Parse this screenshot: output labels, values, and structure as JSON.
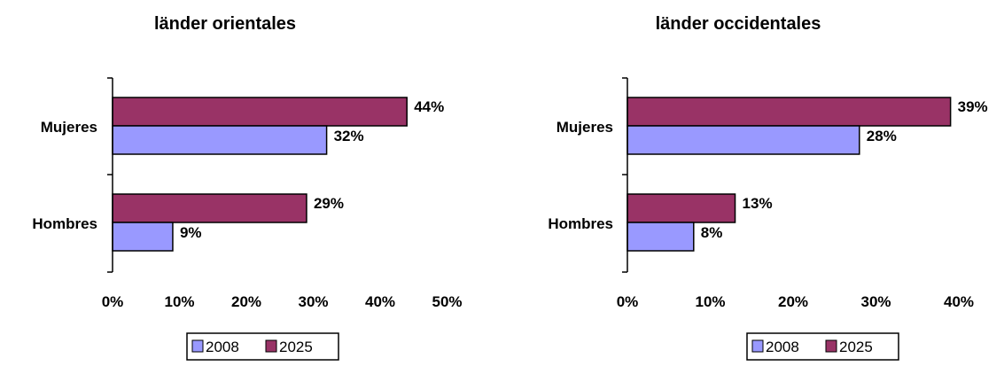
{
  "chart_data": [
    {
      "type": "bar",
      "orientation": "horizontal",
      "title": "länder orientales",
      "categories": [
        "Mujeres",
        "Hombres"
      ],
      "series": [
        {
          "name": "2008",
          "values": [
            32,
            9
          ],
          "labels": [
            "32%",
            "9%"
          ]
        },
        {
          "name": "2025",
          "values": [
            44,
            29
          ],
          "labels": [
            "44%",
            "29%"
          ]
        }
      ],
      "xlim": [
        0,
        50
      ],
      "x_ticks": [
        "0%",
        "10%",
        "20%",
        "30%",
        "40%",
        "50%"
      ],
      "legend": "bottom",
      "grid": false
    },
    {
      "type": "bar",
      "orientation": "horizontal",
      "title": "länder occidentales",
      "categories": [
        "Mujeres",
        "Hombres"
      ],
      "series": [
        {
          "name": "2008",
          "values": [
            28,
            8
          ],
          "labels": [
            "28%",
            "8%"
          ]
        },
        {
          "name": "2025",
          "values": [
            39,
            13
          ],
          "labels": [
            "39%",
            "13%"
          ]
        }
      ],
      "xlim": [
        0,
        40
      ],
      "x_ticks": [
        "0%",
        "10%",
        "20%",
        "30%",
        "40%"
      ],
      "legend": "bottom",
      "grid": false
    }
  ],
  "colors": {
    "2008": "#9999ff",
    "2025": "#993366",
    "axis": "#000000"
  }
}
